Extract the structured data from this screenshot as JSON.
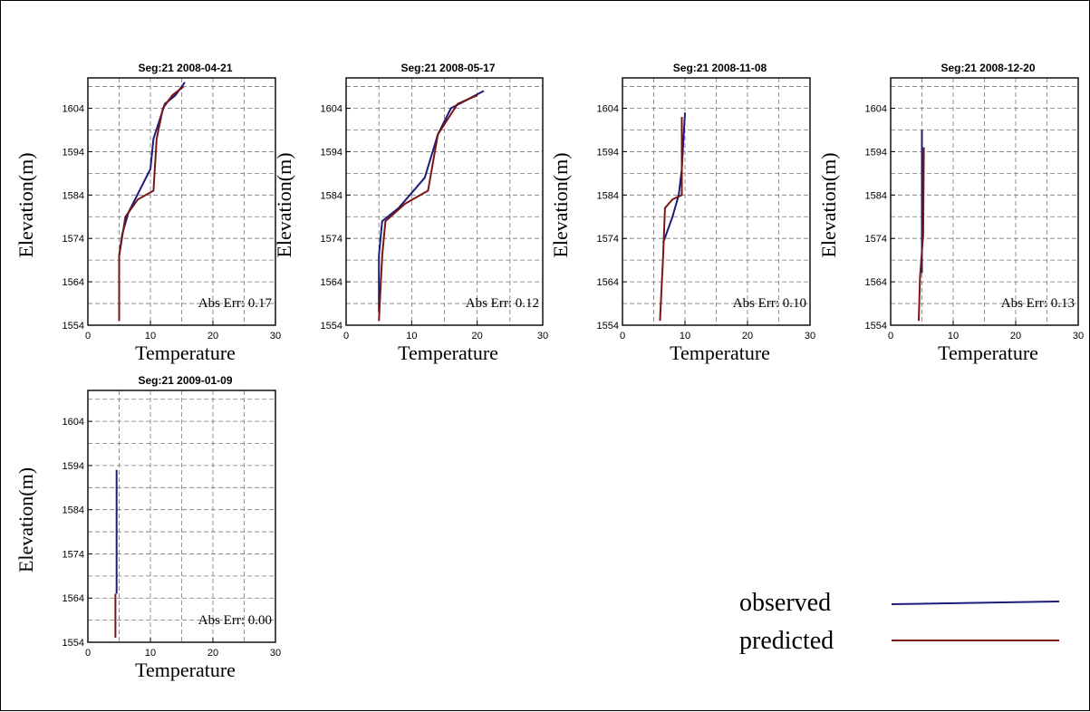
{
  "legend": {
    "observed": {
      "label": "observed",
      "color": "#1c1c7a"
    },
    "predicted": {
      "label": "predicted",
      "color": "#7a1515"
    }
  },
  "chart_data": [
    {
      "type": "line",
      "title": "Seg:21  2008-04-21",
      "xlabel": "Temperature",
      "ylabel": "Elevation(m)",
      "xlim": [
        0,
        30
      ],
      "ylim": [
        1554,
        1611
      ],
      "xticks": [
        0,
        10,
        20,
        30
      ],
      "yticks": [
        1554,
        1564,
        1574,
        1584,
        1594,
        1604
      ],
      "annotation": "Abs Err: 0.17",
      "series": [
        {
          "key": "observed",
          "points": [
            [
              5,
              1570
            ],
            [
              5.5,
              1575
            ],
            [
              6.5,
              1580
            ],
            [
              10,
              1590
            ],
            [
              10.5,
              1597
            ],
            [
              12.3,
              1605
            ],
            [
              14,
              1607
            ],
            [
              15.5,
              1610
            ]
          ]
        },
        {
          "key": "predicted",
          "points": [
            [
              5,
              1555
            ],
            [
              5,
              1570
            ],
            [
              6,
              1579
            ],
            [
              8,
              1583
            ],
            [
              10.5,
              1585
            ],
            [
              11,
              1597
            ],
            [
              12,
              1604
            ],
            [
              13.5,
              1607
            ],
            [
              15.3,
              1609
            ]
          ]
        }
      ]
    },
    {
      "type": "line",
      "title": "Seg:21  2008-05-17",
      "xlabel": "Temperature",
      "ylabel": "Elevation(m)",
      "xlim": [
        0,
        30
      ],
      "ylim": [
        1554,
        1611
      ],
      "xticks": [
        0,
        10,
        20,
        30
      ],
      "yticks": [
        1554,
        1564,
        1574,
        1584,
        1594,
        1604
      ],
      "annotation": "Abs Err: 0.12",
      "series": [
        {
          "key": "observed",
          "points": [
            [
              5,
              1557
            ],
            [
              5,
              1570
            ],
            [
              5.5,
              1578
            ],
            [
              8,
              1581
            ],
            [
              12,
              1588
            ],
            [
              14,
              1598
            ],
            [
              16,
              1604
            ],
            [
              21,
              1608
            ]
          ]
        },
        {
          "key": "predicted",
          "points": [
            [
              5,
              1555
            ],
            [
              5.5,
              1570
            ],
            [
              6,
              1578
            ],
            [
              9,
              1582
            ],
            [
              12.5,
              1585
            ],
            [
              14,
              1598
            ],
            [
              17,
              1605
            ],
            [
              20,
              1607
            ]
          ]
        }
      ]
    },
    {
      "type": "line",
      "title": "Seg:21  2008-11-08",
      "xlabel": "Temperature",
      "ylabel": "Elevation(m)",
      "xlim": [
        0,
        30
      ],
      "ylim": [
        1554,
        1611
      ],
      "xticks": [
        0,
        10,
        20,
        30
      ],
      "yticks": [
        1554,
        1564,
        1574,
        1584,
        1594,
        1604
      ],
      "annotation": "Abs Err: 0.10",
      "series": [
        {
          "key": "observed",
          "points": [
            [
              6.5,
              1573
            ],
            [
              8,
              1579
            ],
            [
              9,
              1584
            ],
            [
              9.5,
              1590
            ],
            [
              10,
              1603
            ]
          ]
        },
        {
          "key": "predicted",
          "points": [
            [
              6,
              1555
            ],
            [
              6.5,
              1570
            ],
            [
              6.8,
              1581
            ],
            [
              8,
              1583
            ],
            [
              9.5,
              1584
            ],
            [
              9.5,
              1602
            ]
          ]
        }
      ]
    },
    {
      "type": "line",
      "title": "Seg:21  2008-12-20",
      "xlabel": "Temperature",
      "ylabel": "Elevation(m)",
      "xlim": [
        0,
        30
      ],
      "ylim": [
        1554,
        1611
      ],
      "xticks": [
        0,
        10,
        20,
        30
      ],
      "yticks": [
        1554,
        1564,
        1574,
        1584,
        1594,
        1604
      ],
      "annotation": "Abs Err: 0.13",
      "series": [
        {
          "key": "observed",
          "points": [
            [
              5,
              1566
            ],
            [
              5,
              1599
            ]
          ]
        },
        {
          "key": "predicted",
          "points": [
            [
              4.5,
              1555
            ],
            [
              4.7,
              1565
            ],
            [
              5.2,
              1575
            ],
            [
              5.3,
              1595
            ]
          ]
        }
      ]
    },
    {
      "type": "line",
      "title": "Seg:21  2009-01-09",
      "xlabel": "Temperature",
      "ylabel": "Elevation(m)",
      "xlim": [
        0,
        30
      ],
      "ylim": [
        1554,
        1611
      ],
      "xticks": [
        0,
        10,
        20,
        30
      ],
      "yticks": [
        1554,
        1564,
        1574,
        1584,
        1594,
        1604
      ],
      "annotation": "Abs Err: 0.00",
      "series": [
        {
          "key": "observed",
          "points": [
            [
              4.6,
              1565
            ],
            [
              4.6,
              1593
            ]
          ]
        },
        {
          "key": "predicted",
          "points": [
            [
              4.4,
              1555
            ],
            [
              4.4,
              1565
            ]
          ]
        }
      ]
    }
  ]
}
